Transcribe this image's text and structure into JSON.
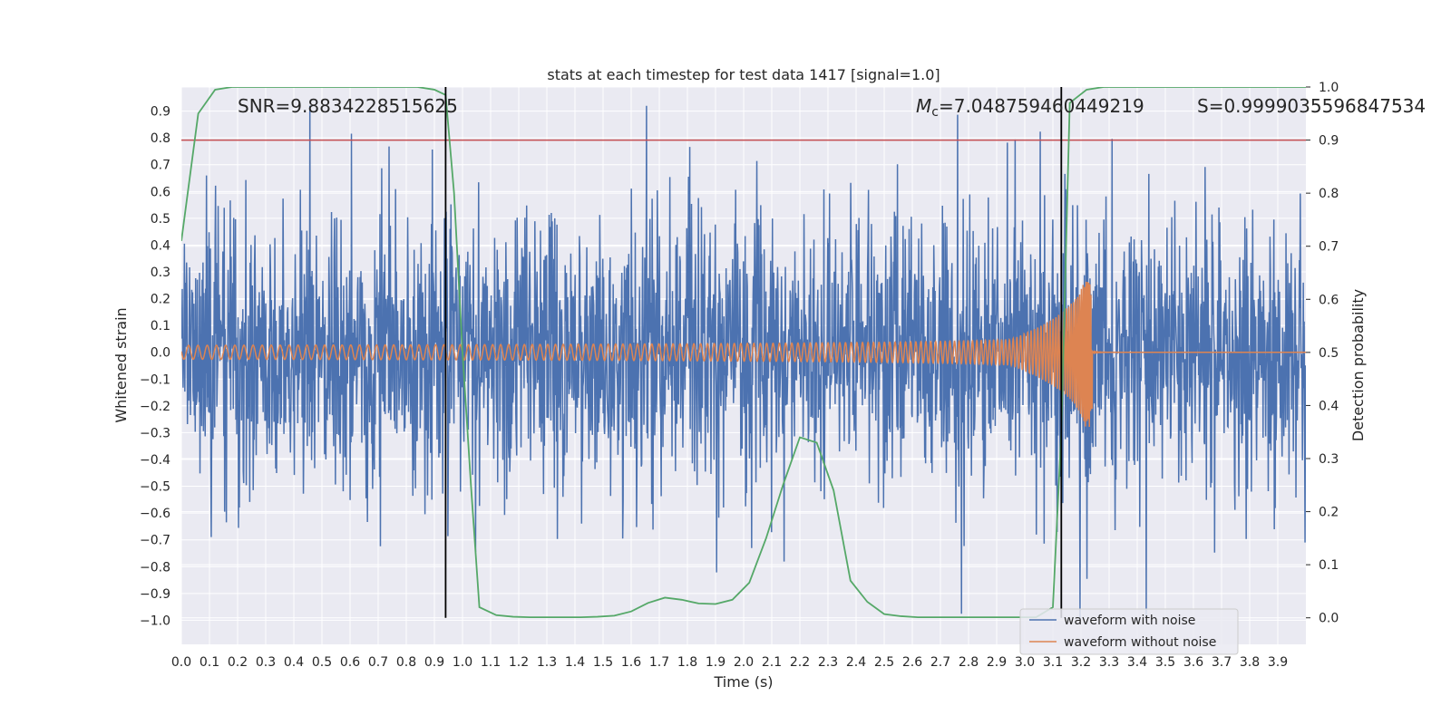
{
  "chart_data": {
    "type": "line",
    "title": "stats at each timestep for test data 1417 [signal=1.0]",
    "xlabel": "Time (s)",
    "ylabel": "Whitened strain",
    "y2label": "Detection probability",
    "xlim": [
      0.0,
      4.0
    ],
    "ylim": [
      -1.09,
      0.99
    ],
    "y2lim": [
      -0.05,
      1.0
    ],
    "xticks": [
      "0.0",
      "0.1",
      "0.2",
      "0.3",
      "0.4",
      "0.5",
      "0.6",
      "0.7",
      "0.8",
      "0.9",
      "1.0",
      "1.1",
      "1.2",
      "1.3",
      "1.4",
      "1.5",
      "1.6",
      "1.7",
      "1.8",
      "1.9",
      "2.0",
      "2.1",
      "2.2",
      "2.3",
      "2.4",
      "2.5",
      "2.6",
      "2.7",
      "2.8",
      "2.9",
      "3.0",
      "3.1",
      "3.2",
      "3.3",
      "3.4",
      "3.5",
      "3.6",
      "3.7",
      "3.8",
      "3.9"
    ],
    "yticks": [
      "0.9",
      "0.8",
      "0.7",
      "0.6",
      "0.5",
      "0.4",
      "0.3",
      "0.2",
      "0.1",
      "0.0",
      "−0.1",
      "−0.2",
      "−0.3",
      "−0.4",
      "−0.5",
      "−0.6",
      "−0.7",
      "−0.8",
      "−0.9",
      "−1.0"
    ],
    "y2ticks": [
      "1.0",
      "0.9",
      "0.8",
      "0.7",
      "0.6",
      "0.5",
      "0.4",
      "0.3",
      "0.2",
      "0.1",
      "0.0"
    ],
    "threshold": 0.9,
    "markers_x": [
      0.94,
      3.13
    ],
    "colors": {
      "noise": "#4c72b0",
      "clean": "#dd8452",
      "prob": "#55a868",
      "threshold": "#c44e52",
      "marker": "#000000",
      "background": "#eaeaf2",
      "grid": "#ffffff"
    },
    "annotations": {
      "snr": "SNR=9.8834228515625",
      "mc_symbol": "M",
      "mc_sub": "c",
      "mc_value": "=7.048759460449219",
      "s": "S=0.9999035596847534"
    },
    "legend": [
      "waveform with noise",
      "waveform without noise"
    ],
    "prob_series": {
      "x": [
        0.0,
        0.06,
        0.12,
        0.18,
        0.24,
        0.3,
        0.36,
        0.42,
        0.48,
        0.54,
        0.6,
        0.66,
        0.72,
        0.78,
        0.84,
        0.9,
        0.94,
        0.97,
        1.0,
        1.03,
        1.06,
        1.12,
        1.18,
        1.24,
        1.3,
        1.36,
        1.42,
        1.48,
        1.54,
        1.6,
        1.66,
        1.72,
        1.78,
        1.84,
        1.9,
        1.96,
        2.02,
        2.08,
        2.14,
        2.2,
        2.26,
        2.32,
        2.38,
        2.44,
        2.5,
        2.56,
        2.62,
        2.68,
        2.74,
        2.8,
        2.86,
        2.92,
        2.98,
        3.04,
        3.1,
        3.13,
        3.16,
        3.22,
        3.28,
        3.34,
        3.4,
        3.46,
        3.52,
        3.58,
        3.64,
        3.7,
        3.76,
        3.82,
        3.88,
        3.94,
        4.0
      ],
      "y": [
        0.71,
        0.95,
        0.995,
        1.0,
        1.0,
        1.0,
        1.0,
        1.0,
        1.0,
        1.0,
        1.0,
        1.0,
        1.0,
        1.0,
        1.0,
        0.995,
        0.985,
        0.8,
        0.5,
        0.25,
        0.02,
        0.005,
        0.002,
        0.001,
        0.001,
        0.001,
        0.001,
        0.002,
        0.004,
        0.012,
        0.028,
        0.038,
        0.034,
        0.027,
        0.026,
        0.034,
        0.066,
        0.15,
        0.25,
        0.34,
        0.33,
        0.24,
        0.07,
        0.03,
        0.007,
        0.003,
        0.001,
        0.001,
        0.001,
        0.001,
        0.001,
        0.001,
        0.001,
        0.001,
        0.02,
        0.35,
        0.97,
        0.995,
        1.0,
        1.0,
        1.0,
        1.0,
        1.0,
        1.0,
        1.0,
        1.0,
        1.0,
        1.0,
        1.0,
        1.0,
        1.0
      ]
    },
    "clean_wave": {
      "f_start_hz": 30,
      "f_end_hz": 250,
      "t_merge": 3.24,
      "amp_start": 0.026,
      "amp_merge": 0.28
    },
    "noise_wave": {
      "samples": 2600,
      "amplitude": 0.25,
      "seed": 1417
    }
  }
}
